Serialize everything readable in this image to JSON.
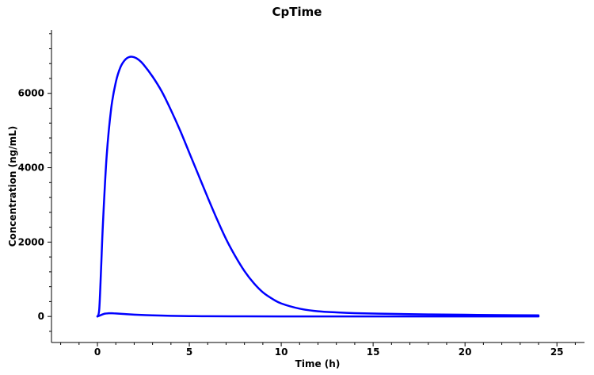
{
  "chart_data": {
    "type": "line",
    "title": "CpTime",
    "xlabel": "Time (h)",
    "ylabel": "Concentration (ng/mL)",
    "xlim": [
      -2.5,
      26.5
    ],
    "ylim": [
      -700,
      7700
    ],
    "xticks": [
      0,
      5,
      10,
      15,
      20,
      25
    ],
    "yticks": [
      0,
      2000,
      4000,
      6000
    ],
    "xtick_labels": [
      "0",
      "5",
      "10",
      "15",
      "20",
      "25"
    ],
    "ytick_labels": [
      "0",
      "2000",
      "4000",
      "6000"
    ],
    "grid": false,
    "legend": "none",
    "series": [
      {
        "color": "#0000ff",
        "x": [
          0,
          0.1,
          0.2,
          0.3,
          0.5,
          0.75,
          1.0,
          1.25,
          1.5,
          1.75,
          2.0,
          2.25,
          2.5,
          3,
          3.5,
          4,
          4.5,
          5,
          5.5,
          6,
          6.5,
          7,
          7.5,
          8,
          8.5,
          9,
          9.5,
          10,
          11,
          12,
          13,
          14,
          16,
          18,
          20,
          22,
          24
        ],
        "y": [
          0,
          200,
          1300,
          2500,
          4300,
          5600,
          6300,
          6700,
          6900,
          6980,
          6970,
          6900,
          6780,
          6450,
          6050,
          5550,
          5000,
          4400,
          3800,
          3200,
          2620,
          2080,
          1620,
          1220,
          900,
          650,
          480,
          350,
          210,
          140,
          110,
          90,
          70,
          55,
          45,
          35,
          30
        ]
      },
      {
        "color": "#0000ff",
        "x": [
          0,
          0.2,
          0.4,
          0.6,
          0.8,
          1.0,
          1.5,
          2,
          3,
          4,
          5,
          6,
          8,
          10,
          12,
          16,
          20,
          24
        ],
        "y": [
          0,
          40,
          75,
          85,
          85,
          80,
          65,
          50,
          30,
          18,
          10,
          6,
          3,
          2,
          1,
          1,
          0,
          0
        ]
      }
    ]
  }
}
